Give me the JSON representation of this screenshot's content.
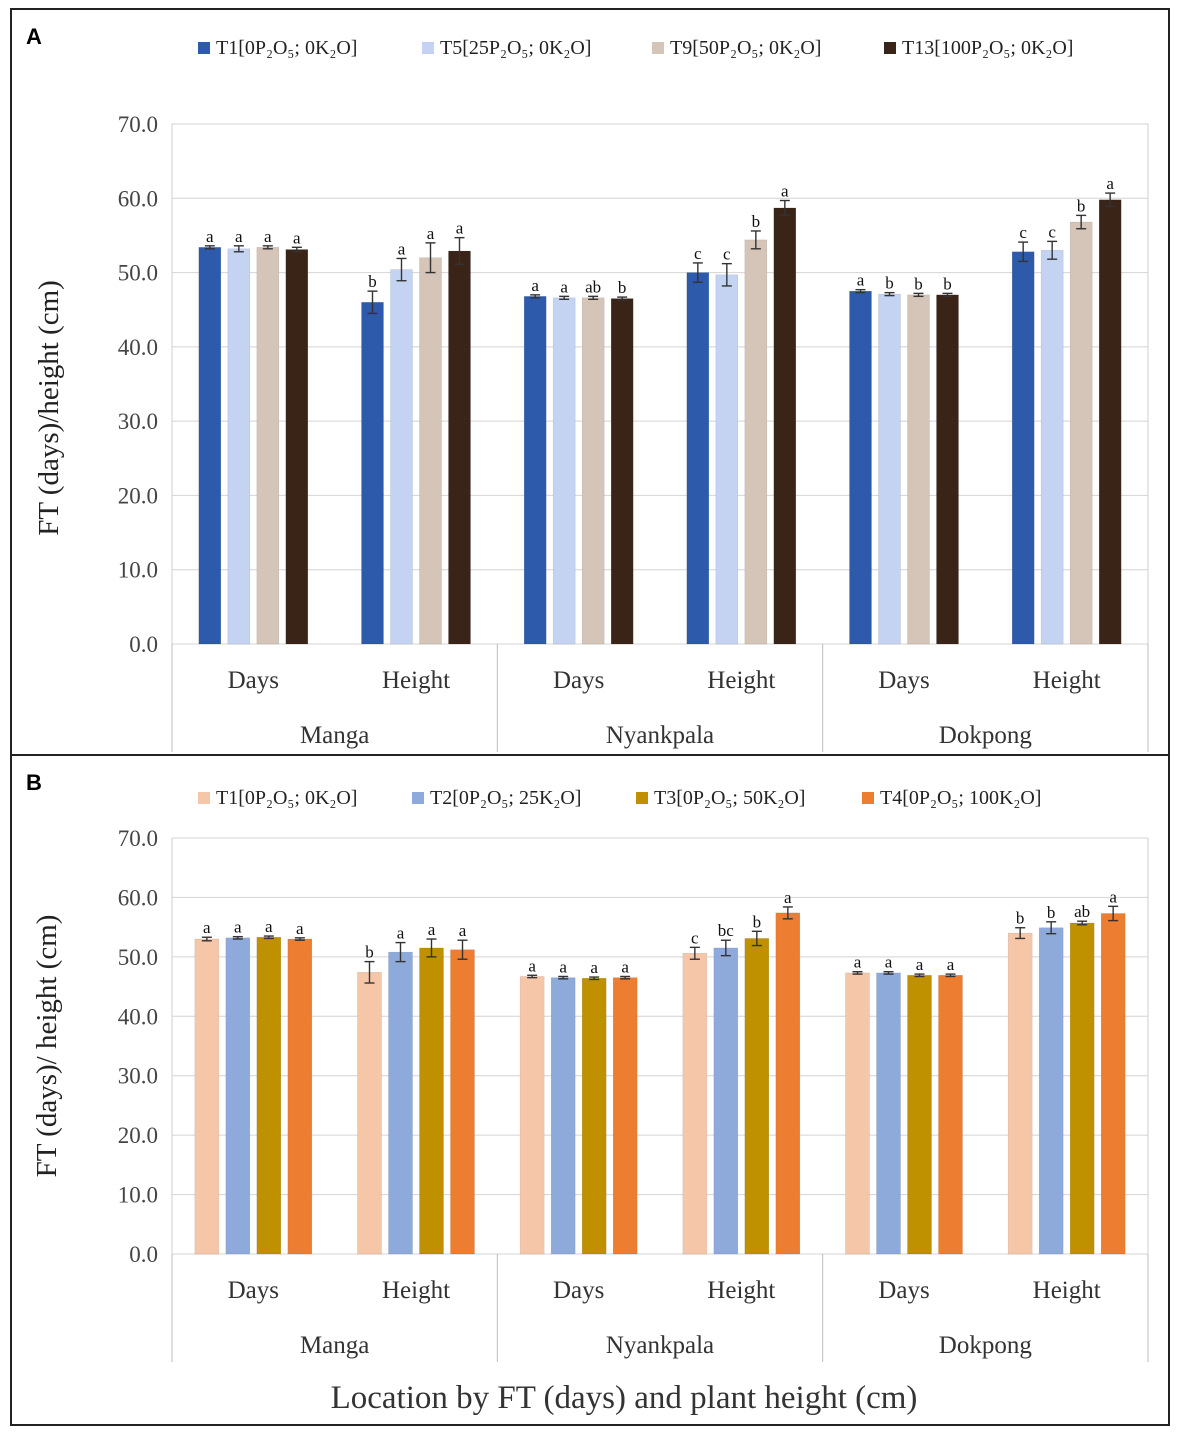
{
  "chart_data": [
    {
      "panel": "A",
      "type": "bar",
      "ylabel": "FT (days)/height (cm)",
      "xlabel": "",
      "ylim": [
        0,
        70
      ],
      "yticks": [
        "0.0",
        "10.0",
        "20.0",
        "30.0",
        "40.0",
        "50.0",
        "60.0",
        "70.0"
      ],
      "grid": true,
      "legend_position": "top",
      "groups": [
        "Manga",
        "Nyankpala",
        "Dokpong"
      ],
      "categories": [
        "Days",
        "Height",
        "Days",
        "Height",
        "Days",
        "Height"
      ],
      "series": [
        {
          "name": "T1[0P₂O₅; 0K₂O]",
          "color": "#2e5aac",
          "values": [
            53.4,
            46.0,
            46.8,
            50.0,
            47.5,
            52.8
          ],
          "errors": [
            0.2,
            1.5,
            0.2,
            1.3,
            0.2,
            1.3
          ],
          "letters": [
            "a",
            "b",
            "a",
            "c",
            "a",
            "c"
          ]
        },
        {
          "name": "T5[25P₂O₅; 0K₂O]",
          "color": "#c5d3f2",
          "values": [
            53.2,
            50.4,
            46.6,
            49.7,
            47.1,
            53.0
          ],
          "errors": [
            0.4,
            1.5,
            0.2,
            1.5,
            0.2,
            1.2
          ],
          "letters": [
            "a",
            "a",
            "a",
            "c",
            "b",
            "c"
          ]
        },
        {
          "name": "T9[50P₂O₅; 0K₂O]",
          "color": "#d5c4b8",
          "values": [
            53.4,
            52.0,
            46.6,
            54.4,
            47.0,
            56.8
          ],
          "errors": [
            0.2,
            2.0,
            0.2,
            1.2,
            0.2,
            0.9
          ],
          "letters": [
            "a",
            "a",
            "ab",
            "b",
            "b",
            "b"
          ]
        },
        {
          "name": "T13[100P₂O₅; 0K₂O]",
          "color": "#3a2418",
          "values": [
            53.1,
            52.9,
            46.5,
            58.7,
            47.0,
            59.8
          ],
          "errors": [
            0.3,
            1.8,
            0.2,
            1.0,
            0.2,
            0.9
          ],
          "letters": [
            "a",
            "a",
            "b",
            "a",
            "b",
            "a"
          ]
        }
      ]
    },
    {
      "panel": "B",
      "type": "bar",
      "ylabel": "FT (days)/ height (cm)",
      "xlabel": "Location by FT (days) and plant height (cm)",
      "ylim": [
        0,
        70
      ],
      "yticks": [
        "0.0",
        "10.0",
        "20.0",
        "30.0",
        "40.0",
        "50.0",
        "60.0",
        "70.0"
      ],
      "grid": true,
      "legend_position": "top",
      "groups": [
        "Manga",
        "Nyankpala",
        "Dokpong"
      ],
      "categories": [
        "Days",
        "Height",
        "Days",
        "Height",
        "Days",
        "Height"
      ],
      "series": [
        {
          "name": "T1[0P₂O₅; 0K₂O]",
          "color": "#f6c6a8",
          "values": [
            53.0,
            47.4,
            46.7,
            50.6,
            47.3,
            54.0
          ],
          "errors": [
            0.3,
            1.8,
            0.2,
            1.0,
            0.2,
            0.9
          ],
          "letters": [
            "a",
            "b",
            "a",
            "c",
            "a",
            "b"
          ]
        },
        {
          "name": "T2[0P₂O₅; 25K₂O]",
          "color": "#8eaadb",
          "values": [
            53.2,
            50.8,
            46.5,
            51.5,
            47.3,
            54.9
          ],
          "errors": [
            0.2,
            1.6,
            0.2,
            1.3,
            0.2,
            1.0
          ],
          "letters": [
            "a",
            "a",
            "a",
            "bc",
            "a",
            "b"
          ]
        },
        {
          "name": "T3[0P₂O₅; 50K₂O]",
          "color": "#bf9000",
          "values": [
            53.3,
            51.5,
            46.4,
            53.1,
            46.9,
            55.7
          ],
          "errors": [
            0.2,
            1.5,
            0.2,
            1.2,
            0.2,
            0.3
          ],
          "letters": [
            "a",
            "a",
            "a",
            "b",
            "a",
            "ab"
          ]
        },
        {
          "name": "T4[0P₂O₅; 100K₂O]",
          "color": "#ed7d31",
          "values": [
            53.0,
            51.2,
            46.5,
            57.4,
            46.9,
            57.3
          ],
          "errors": [
            0.2,
            1.6,
            0.2,
            1.0,
            0.2,
            1.2
          ],
          "letters": [
            "a",
            "a",
            "a",
            "a",
            "a",
            "a"
          ]
        }
      ]
    }
  ]
}
